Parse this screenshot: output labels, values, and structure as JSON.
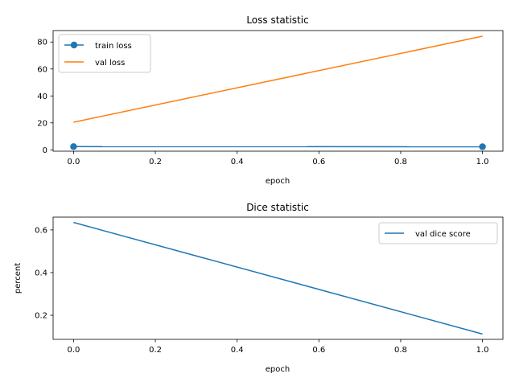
{
  "chart_data": [
    {
      "type": "line",
      "title": "Loss statistic",
      "xlabel": "epoch",
      "ylabel": "",
      "x": [
        0,
        1
      ],
      "xlim": [
        -0.05,
        1.05
      ],
      "ylim": [
        -1.0,
        88.5
      ],
      "xticks": [
        "0.0",
        "0.2",
        "0.4",
        "0.6",
        "0.8",
        "1.0"
      ],
      "yticks": [
        "0",
        "20",
        "40",
        "60",
        "80"
      ],
      "legend": "top-left",
      "grid": false,
      "series": [
        {
          "name": "train loss",
          "values": [
            2.4,
            2.3
          ],
          "color": "#1f77b4",
          "marker": "circle"
        },
        {
          "name": "val loss",
          "values": [
            20.5,
            84.3
          ],
          "color": "#ff7f0e",
          "marker": "none"
        }
      ]
    },
    {
      "type": "line",
      "title": "Dice statistic",
      "xlabel": "epoch",
      "ylabel": "percent",
      "x": [
        0,
        1
      ],
      "xlim": [
        -0.05,
        1.05
      ],
      "ylim": [
        0.087,
        0.66
      ],
      "xticks": [
        "0.0",
        "0.2",
        "0.4",
        "0.6",
        "0.8",
        "1.0"
      ],
      "yticks": [
        "0.2",
        "0.4",
        "0.6"
      ],
      "legend": "top-right",
      "grid": false,
      "series": [
        {
          "name": "val dice score",
          "values": [
            0.635,
            0.112
          ],
          "color": "#1f77b4",
          "marker": "none"
        }
      ]
    }
  ]
}
